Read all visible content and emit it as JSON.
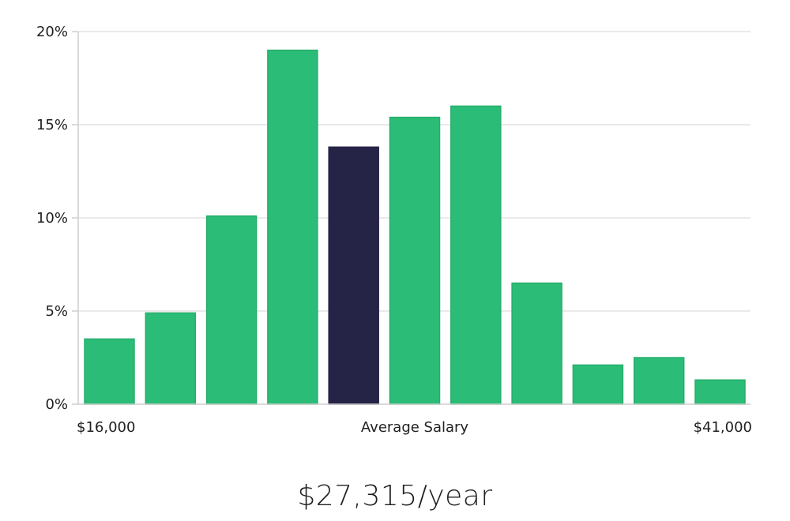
{
  "chart_data": {
    "type": "bar",
    "values": [
      3.5,
      4.9,
      10.1,
      19.0,
      13.8,
      15.4,
      16.0,
      6.5,
      2.1,
      2.5,
      1.3
    ],
    "highlight_index": 4,
    "ylim": [
      0,
      20
    ],
    "y_ticks": [
      {
        "value": 0,
        "label": "0%"
      },
      {
        "value": 5,
        "label": "5%"
      },
      {
        "value": 10,
        "label": "10%"
      },
      {
        "value": 15,
        "label": "15%"
      },
      {
        "value": 20,
        "label": "20%"
      }
    ],
    "x_labels": {
      "min": "$16,000",
      "center": "Average Salary",
      "max": "$41,000"
    },
    "grid": true,
    "colors": {
      "bar": "#2bbd77",
      "bar_edge": "#27ae6c",
      "highlight": "#262446"
    }
  },
  "salary": {
    "text": "$27,315/year"
  }
}
